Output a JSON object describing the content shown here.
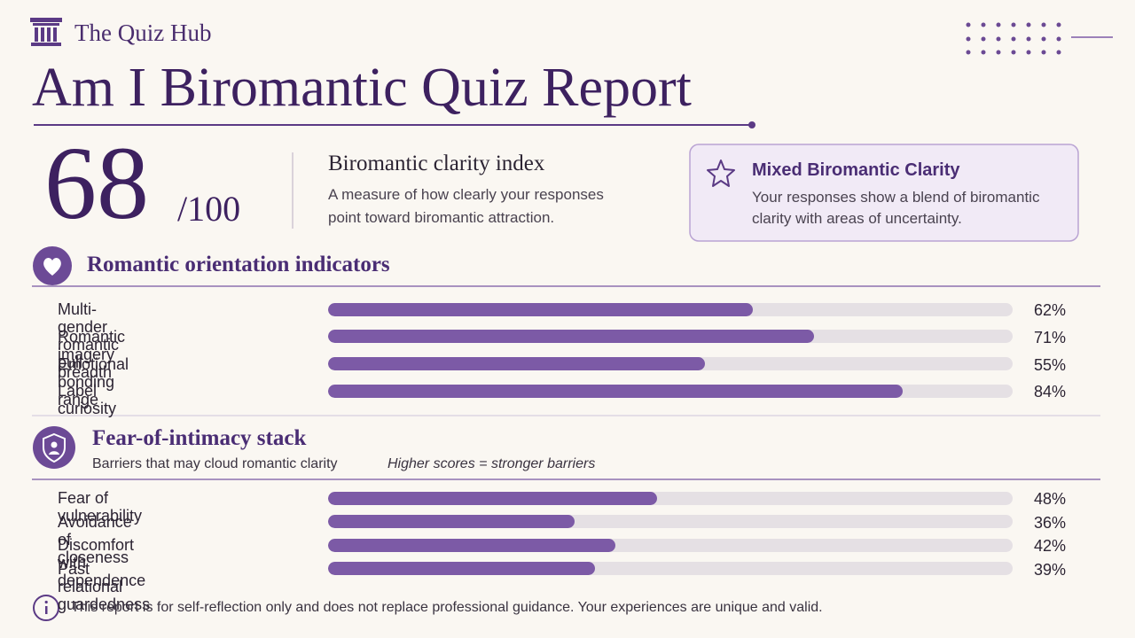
{
  "header": {
    "brand": "The Quiz Hub",
    "title": "Am I Biromantic Quiz Report"
  },
  "score": {
    "value": 68,
    "out_of": {
      "value": 100,
      "label": "/100"
    },
    "heading": "Biromantic clarity index",
    "description": "A measure of how clearly your responses point toward biromantic attraction."
  },
  "result": {
    "title": "Mixed Biromantic Clarity",
    "description": "Your responses show a blend of biromantic clarity with areas of uncertainty."
  },
  "sections": [
    {
      "title": "Romantic orientation indicators",
      "rows": [
        {
          "label": "Multi-gender romantic pull",
          "value": 62,
          "value_label": "62%"
        },
        {
          "label": "Romantic imagery breadth",
          "value": 71,
          "value_label": "71%"
        },
        {
          "label": "Emotional bonding range",
          "value": 55,
          "value_label": "55%"
        },
        {
          "label": "Label curiosity",
          "value": 84,
          "value_label": "84%"
        }
      ]
    },
    {
      "title": "Fear-of-intimacy stack",
      "subtitle": "Barriers that may cloud romantic clarity",
      "note": "Higher scores = stronger barriers",
      "rows": [
        {
          "label": "Fear of vulnerability",
          "value": 48,
          "value_label": "48%"
        },
        {
          "label": "Avoidance of closeness",
          "value": 36,
          "value_label": "36%"
        },
        {
          "label": "Discomfort with dependence",
          "value": 42,
          "value_label": "42%"
        },
        {
          "label": "Past relational guardedness",
          "value": 39,
          "value_label": "39%"
        }
      ]
    }
  ],
  "footer": "This report is for self-reflection only and does not replace professional guidance. Your experiences are unique and valid."
}
